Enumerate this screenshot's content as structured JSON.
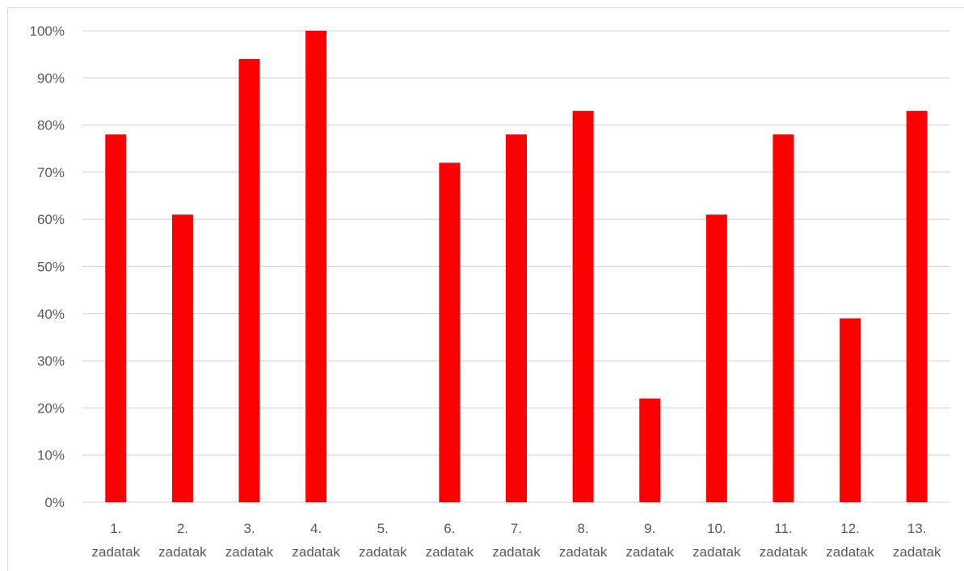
{
  "chart_data": {
    "type": "bar",
    "title": "",
    "xlabel": "",
    "ylabel": "",
    "categories": [
      [
        "1.",
        "zadatak"
      ],
      [
        "2.",
        "zadatak"
      ],
      [
        "3.",
        "zadatak"
      ],
      [
        "4.",
        "zadatak"
      ],
      [
        "5.",
        "zadatak"
      ],
      [
        "6.",
        "zadatak"
      ],
      [
        "7.",
        "zadatak"
      ],
      [
        "8.",
        "zadatak"
      ],
      [
        "9.",
        "zadatak"
      ],
      [
        "10.",
        "zadatak"
      ],
      [
        "11.",
        "zadatak"
      ],
      [
        "12.",
        "zadatak"
      ],
      [
        "13.",
        "zadatak"
      ]
    ],
    "values": [
      78,
      61,
      94,
      100,
      0,
      72,
      78,
      83,
      22,
      61,
      78,
      39,
      83
    ],
    "ylim": [
      0,
      100
    ],
    "yticks": [
      "0%",
      "10%",
      "20%",
      "30%",
      "40%",
      "50%",
      "60%",
      "70%",
      "80%",
      "90%",
      "100%"
    ],
    "grid": true,
    "legend": "none",
    "colors": {
      "bar": "#ff0000",
      "grid": "#d9d9d9",
      "text": "#595959",
      "axis": "#d9d9d9"
    }
  }
}
